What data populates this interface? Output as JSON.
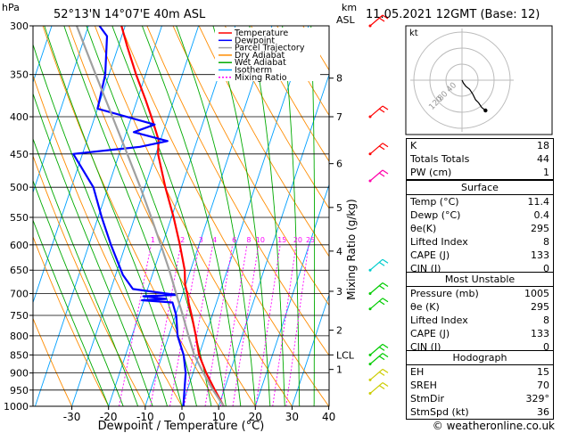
{
  "header": {
    "location": "52°13'N  14°07'E  40m  ASL",
    "datetime": "11.05.2021  12GMT  (Base: 12)",
    "hpa_unit": "hPa",
    "km_unit_line1": "km",
    "km_unit_line2": "ASL"
  },
  "legend": [
    {
      "label": "Temperature",
      "color": "#ff0000",
      "dash": ""
    },
    {
      "label": "Dewpoint",
      "color": "#0000ff",
      "dash": ""
    },
    {
      "label": "Parcel Trajectory",
      "color": "#a0a0a0",
      "dash": ""
    },
    {
      "label": "Dry Adiabat",
      "color": "#ff8c00",
      "dash": ""
    },
    {
      "label": "Wet Adiabat",
      "color": "#00aa00",
      "dash": ""
    },
    {
      "label": "Isotherm",
      "color": "#00a0ff",
      "dash": ""
    },
    {
      "label": "Mixing Ratio",
      "color": "#ff00ff",
      "dash": "2,2"
    }
  ],
  "chart_data": {
    "type": "line",
    "xlabel": "Dewpoint / Temperature (°C)",
    "ylabel_right": "Mixing Ratio (g/kg)",
    "xlim": [
      -40,
      40
    ],
    "ylim_hpa": [
      1000,
      300
    ],
    "pressure_ticks": [
      300,
      350,
      400,
      450,
      500,
      550,
      600,
      650,
      700,
      750,
      800,
      850,
      900,
      950,
      1000
    ],
    "temp_ticks": [
      -30,
      -20,
      -10,
      0,
      10,
      20,
      30,
      40
    ],
    "km_ticks": [
      {
        "label": "8",
        "p": 354
      },
      {
        "label": "7",
        "p": 400
      },
      {
        "label": "6",
        "p": 464
      },
      {
        "label": "5",
        "p": 533
      },
      {
        "label": "4",
        "p": 612
      },
      {
        "label": "3",
        "p": 695
      },
      {
        "label": "2",
        "p": 786
      },
      {
        "label": "LCL",
        "p": 850
      },
      {
        "label": "1",
        "p": 890
      }
    ],
    "mixing_ratio_labels": [
      "1",
      "2",
      "3",
      "4",
      "6",
      "8",
      "10",
      "15",
      "20",
      "25"
    ],
    "series": [
      {
        "name": "Temperature",
        "color": "#ff0000",
        "points": [
          [
            1000,
            11.4
          ],
          [
            950,
            7.5
          ],
          [
            900,
            3.6
          ],
          [
            850,
            0.0
          ],
          [
            800,
            -2.6
          ],
          [
            750,
            -5.6
          ],
          [
            720,
            -7.6
          ],
          [
            700,
            -8.8
          ],
          [
            680,
            -10.2
          ],
          [
            650,
            -11.6
          ],
          [
            600,
            -15.2
          ],
          [
            550,
            -19.4
          ],
          [
            500,
            -24.4
          ],
          [
            450,
            -29.4
          ],
          [
            430,
            -30.6
          ],
          [
            400,
            -34.6
          ],
          [
            380,
            -37.6
          ],
          [
            350,
            -42.6
          ],
          [
            320,
            -47.6
          ],
          [
            300,
            -51.0
          ]
        ]
      },
      {
        "name": "Dewpoint",
        "color": "#0000ff",
        "points": [
          [
            1000,
            0.4
          ],
          [
            950,
            -0.8
          ],
          [
            900,
            -2.0
          ],
          [
            850,
            -4.2
          ],
          [
            800,
            -7.6
          ],
          [
            750,
            -9.8
          ],
          [
            720,
            -12.0
          ],
          [
            715,
            -20.5
          ],
          [
            712,
            -14.0
          ],
          [
            706,
            -20.5
          ],
          [
            703,
            -11.5
          ],
          [
            700,
            -14.5
          ],
          [
            690,
            -24.0
          ],
          [
            660,
            -28.0
          ],
          [
            600,
            -34.0
          ],
          [
            550,
            -39.0
          ],
          [
            500,
            -44.0
          ],
          [
            450,
            -52.5
          ],
          [
            440,
            -35.0
          ],
          [
            432,
            -28.0
          ],
          [
            420,
            -38.0
          ],
          [
            410,
            -33.0
          ],
          [
            390,
            -50.0
          ],
          [
            350,
            -51.0
          ],
          [
            310,
            -54.0
          ],
          [
            300,
            -57.0
          ]
        ]
      },
      {
        "name": "Parcel Trajectory",
        "color": "#a0a0a0",
        "points": [
          [
            1000,
            11.4
          ],
          [
            950,
            7.0
          ],
          [
            900,
            2.8
          ],
          [
            850,
            -1.3
          ],
          [
            800,
            -4.6
          ],
          [
            750,
            -8.0
          ],
          [
            700,
            -11.8
          ],
          [
            650,
            -15.8
          ],
          [
            600,
            -20.4
          ],
          [
            550,
            -25.5
          ],
          [
            500,
            -31.2
          ],
          [
            450,
            -37.8
          ],
          [
            400,
            -45.2
          ],
          [
            350,
            -53.6
          ],
          [
            300,
            -63.2
          ]
        ]
      }
    ]
  },
  "hodograph": {
    "unit": "kt",
    "ring_labels": [
      "40",
      "80",
      "120"
    ],
    "points": [
      [
        0,
        0
      ],
      [
        2,
        4
      ],
      [
        5,
        8
      ],
      [
        10,
        12
      ],
      [
        14,
        18
      ],
      [
        18,
        26
      ],
      [
        22,
        30
      ],
      [
        26,
        36
      ],
      [
        31,
        40
      ]
    ]
  },
  "indices": {
    "rows": [
      {
        "label": "K",
        "value": "18"
      },
      {
        "label": "Totals Totals",
        "value": "44"
      },
      {
        "label": "PW (cm)",
        "value": "1"
      }
    ]
  },
  "surface": {
    "title": "Surface",
    "rows": [
      {
        "label": "Temp (°C)",
        "value": "11.4"
      },
      {
        "label": "Dewp (°C)",
        "value": "0.4"
      },
      {
        "label": "θe(K)",
        "value": "295"
      },
      {
        "label": "Lifted Index",
        "value": "8"
      },
      {
        "label": "CAPE (J)",
        "value": "133"
      },
      {
        "label": "CIN (J)",
        "value": "0"
      }
    ]
  },
  "most_unstable": {
    "title": "Most Unstable",
    "rows": [
      {
        "label": "Pressure (mb)",
        "value": "1005"
      },
      {
        "label": "θe (K)",
        "value": "295"
      },
      {
        "label": "Lifted Index",
        "value": "8"
      },
      {
        "label": "CAPE (J)",
        "value": "133"
      },
      {
        "label": "CIN (J)",
        "value": "0"
      }
    ]
  },
  "hodograph_params": {
    "title": "Hodograph",
    "rows": [
      {
        "label": "EH",
        "value": "15"
      },
      {
        "label": "SREH",
        "value": "70"
      },
      {
        "label": "StmDir",
        "value": "329°"
      },
      {
        "label": "StmSpd (kt)",
        "value": "36"
      }
    ]
  },
  "wind_barbs": [
    {
      "p": 300,
      "color": "#ff0000"
    },
    {
      "p": 400,
      "color": "#ff0000"
    },
    {
      "p": 450,
      "color": "#ff0000"
    },
    {
      "p": 490,
      "color": "#ff00aa"
    },
    {
      "p": 650,
      "color": "#00cccc"
    },
    {
      "p": 700,
      "color": "#00cc00"
    },
    {
      "p": 735,
      "color": "#00cc00"
    },
    {
      "p": 850,
      "color": "#00cc00"
    },
    {
      "p": 875,
      "color": "#00cc00"
    },
    {
      "p": 920,
      "color": "#cccc00"
    },
    {
      "p": 960,
      "color": "#cccc00"
    }
  ],
  "footer": {
    "copyright": "© weatheronline.co.uk"
  }
}
